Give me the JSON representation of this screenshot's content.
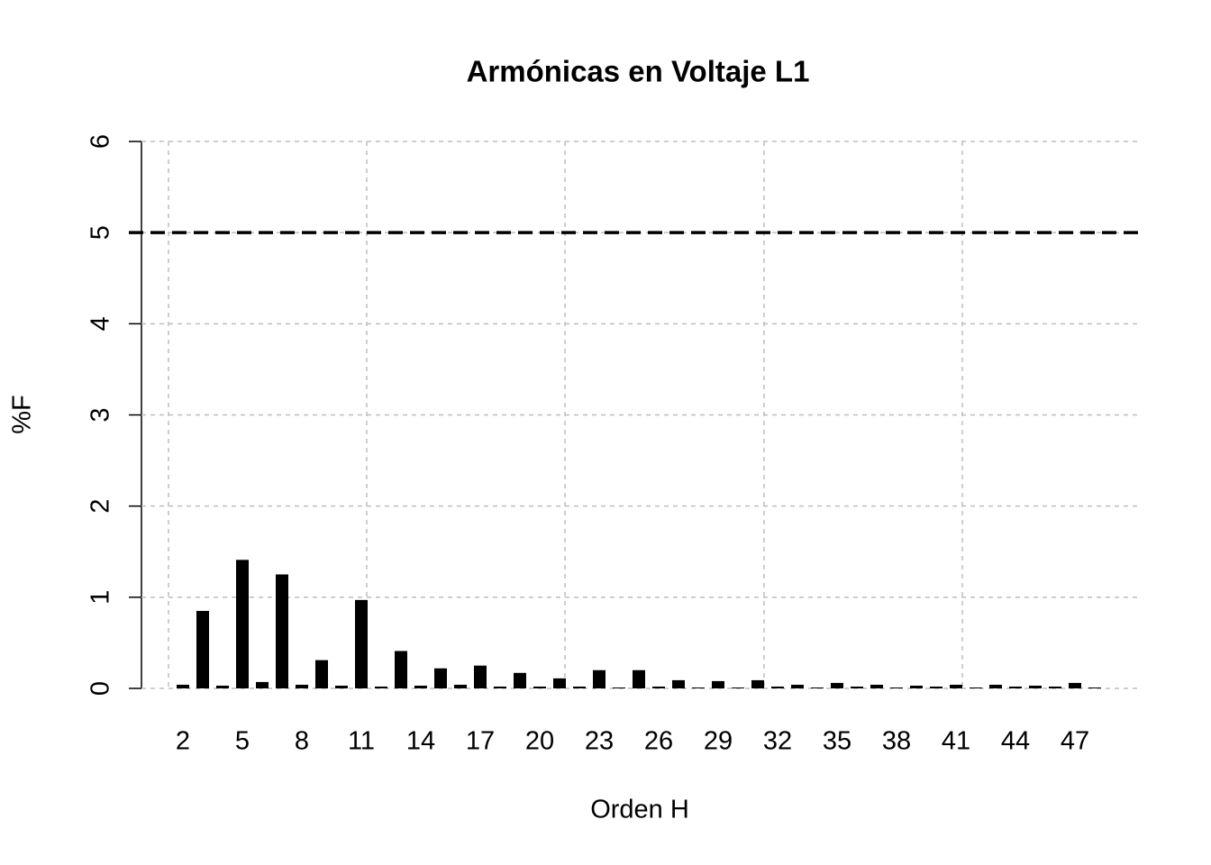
{
  "chart_data": {
    "type": "bar",
    "title": "Armónicas en Voltaje L1",
    "x_label": "Orden H",
    "y_label": "%F",
    "categories": [
      "2",
      null,
      null,
      "5",
      null,
      null,
      "8",
      null,
      null,
      "11",
      null,
      null,
      "14",
      null,
      null,
      "17",
      null,
      null,
      "20",
      null,
      null,
      "23",
      null,
      null,
      "26",
      null,
      null,
      "29",
      null,
      null,
      "32",
      null,
      null,
      "35",
      null,
      null,
      "38",
      null,
      null,
      "41",
      null,
      null,
      "44",
      null,
      null,
      "47",
      null
    ],
    "values": [
      0.04,
      0.85,
      0.03,
      1.41,
      0.07,
      1.25,
      0.04,
      0.31,
      0.03,
      0.97,
      0.02,
      0.41,
      0.03,
      0.22,
      0.04,
      0.25,
      0.02,
      0.17,
      0.02,
      0.11,
      0.02,
      0.2,
      0.01,
      0.2,
      0.02,
      0.09,
      0.01,
      0.08,
      0.01,
      0.09,
      0.02,
      0.04,
      0.01,
      0.06,
      0.02,
      0.04,
      0.01,
      0.03,
      0.02,
      0.04,
      0.01,
      0.04,
      0.02,
      0.03,
      0.02,
      0.06,
      0.01
    ],
    "color": "#000000",
    "ylim": [
      0,
      6
    ],
    "yticks": [
      0,
      1,
      2,
      3,
      4,
      5,
      6
    ],
    "grid": true,
    "reference_line": 5
  }
}
